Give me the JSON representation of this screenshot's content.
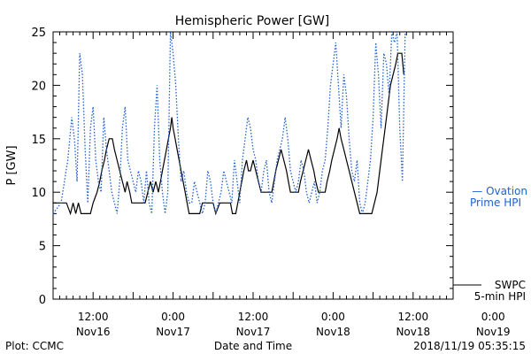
{
  "chart_data": {
    "type": "line",
    "title": "Hemispheric Power [GW]",
    "xlabel": "Date and Time",
    "ylabel": "P [GW]",
    "ylim": [
      0,
      25
    ],
    "xlim": [
      0,
      60
    ],
    "x_unit": "hours",
    "yticks": [
      0,
      5,
      10,
      15,
      20,
      25
    ],
    "xticks": [
      {
        "x": 6,
        "time": "12:00",
        "date": "Nov16"
      },
      {
        "x": 18,
        "time": "0:00",
        "date": "Nov17"
      },
      {
        "x": 30,
        "time": "12:00",
        "date": "Nov17"
      },
      {
        "x": 42,
        "time": "0:00",
        "date": "Nov18"
      },
      {
        "x": 54,
        "time": "12:00",
        "date": "Nov18"
      },
      {
        "x": 66,
        "time": "0:00",
        "date": "Nov19"
      }
    ],
    "footer_left": "Plot: CCMC",
    "footer_right": "2018/11/19 05:35:15",
    "legend": {
      "ovation": [
        "— Ovation",
        "Prime HPI"
      ],
      "swpc": [
        "SWPC",
        "5-min HPI"
      ]
    },
    "colors": {
      "swpc": "#000000",
      "ovation": "#1f5fd0"
    },
    "series": [
      {
        "name": "SWPC 5-min HPI",
        "style": "solid",
        "points": [
          [
            0,
            9
          ],
          [
            1,
            9
          ],
          [
            2,
            9
          ],
          [
            2.6,
            8
          ],
          [
            3.0,
            9
          ],
          [
            3.4,
            8
          ],
          [
            3.8,
            9
          ],
          [
            4.2,
            8
          ],
          [
            5.6,
            8
          ],
          [
            6.0,
            9
          ],
          [
            6.6,
            10
          ],
          [
            7.0,
            11
          ],
          [
            7.3,
            12
          ],
          [
            7.7,
            13
          ],
          [
            8.0,
            14
          ],
          [
            8.4,
            15
          ],
          [
            8.9,
            15
          ],
          [
            9.2,
            14
          ],
          [
            9.6,
            13
          ],
          [
            10.0,
            12
          ],
          [
            10.4,
            11
          ],
          [
            10.8,
            10
          ],
          [
            11.1,
            11
          ],
          [
            11.5,
            10
          ],
          [
            11.8,
            9
          ],
          [
            12.2,
            9
          ],
          [
            13.8,
            9
          ],
          [
            14.2,
            10
          ],
          [
            14.6,
            11
          ],
          [
            15.0,
            10
          ],
          [
            15.4,
            11
          ],
          [
            15.8,
            10
          ],
          [
            16.1,
            11
          ],
          [
            16.4,
            12
          ],
          [
            16.7,
            13
          ],
          [
            17.0,
            14
          ],
          [
            17.3,
            15
          ],
          [
            17.6,
            16
          ],
          [
            17.8,
            17
          ],
          [
            18.0,
            16
          ],
          [
            18.3,
            15
          ],
          [
            18.6,
            14
          ],
          [
            18.9,
            13
          ],
          [
            19.2,
            12
          ],
          [
            19.5,
            11
          ],
          [
            19.8,
            10
          ],
          [
            20.1,
            9
          ],
          [
            20.4,
            8
          ],
          [
            22.0,
            8
          ],
          [
            22.4,
            9
          ],
          [
            24.0,
            9
          ],
          [
            24.4,
            8
          ],
          [
            25.0,
            9
          ],
          [
            26.6,
            9
          ],
          [
            26.9,
            8
          ],
          [
            27.4,
            8
          ],
          [
            27.7,
            9
          ],
          [
            28.0,
            10
          ],
          [
            28.3,
            11
          ],
          [
            28.6,
            12
          ],
          [
            29.0,
            13
          ],
          [
            29.3,
            12
          ],
          [
            29.6,
            12
          ],
          [
            30.0,
            13
          ],
          [
            30.4,
            12
          ],
          [
            30.8,
            11
          ],
          [
            31.2,
            10
          ],
          [
            32.8,
            10
          ],
          [
            33.1,
            11
          ],
          [
            33.4,
            12
          ],
          [
            33.8,
            13
          ],
          [
            34.2,
            14
          ],
          [
            34.6,
            13
          ],
          [
            35.0,
            12
          ],
          [
            35.3,
            11
          ],
          [
            35.6,
            10
          ],
          [
            36.8,
            10
          ],
          [
            37.1,
            11
          ],
          [
            37.5,
            12
          ],
          [
            37.9,
            13
          ],
          [
            38.3,
            14
          ],
          [
            38.7,
            13
          ],
          [
            39.1,
            12
          ],
          [
            39.4,
            11
          ],
          [
            39.8,
            10
          ],
          [
            40.8,
            10
          ],
          [
            41.1,
            11
          ],
          [
            41.5,
            12
          ],
          [
            41.8,
            13
          ],
          [
            42.2,
            14
          ],
          [
            42.6,
            15
          ],
          [
            42.9,
            16
          ],
          [
            43.2,
            15
          ],
          [
            43.6,
            14
          ],
          [
            44.0,
            13
          ],
          [
            44.4,
            12
          ],
          [
            44.8,
            11
          ],
          [
            45.2,
            10
          ],
          [
            45.6,
            9
          ],
          [
            46.0,
            8
          ],
          [
            47.8,
            8
          ],
          [
            48.2,
            9
          ],
          [
            48.6,
            10
          ],
          [
            49.0,
            12
          ],
          [
            49.4,
            14
          ],
          [
            49.8,
            16
          ],
          [
            50.2,
            18
          ],
          [
            50.6,
            20
          ],
          [
            51.0,
            21
          ],
          [
            51.4,
            22
          ],
          [
            51.7,
            23
          ],
          [
            52.3,
            23
          ],
          [
            52.6,
            21
          ]
        ]
      },
      {
        "name": "Ovation Prime HPI",
        "style": "dotted",
        "points": [
          [
            0,
            8
          ],
          [
            1.2,
            9
          ],
          [
            2.2,
            13
          ],
          [
            2.8,
            17
          ],
          [
            3.2,
            15
          ],
          [
            3.6,
            11
          ],
          [
            4.0,
            23
          ],
          [
            4.4,
            21
          ],
          [
            4.8,
            14
          ],
          [
            5.2,
            9
          ],
          [
            5.6,
            16
          ],
          [
            6.0,
            18
          ],
          [
            6.4,
            13
          ],
          [
            6.8,
            11
          ],
          [
            7.2,
            10
          ],
          [
            7.6,
            17
          ],
          [
            8.0,
            14
          ],
          [
            8.4,
            12
          ],
          [
            8.8,
            10
          ],
          [
            9.2,
            9
          ],
          [
            9.6,
            8
          ],
          [
            10.0,
            11
          ],
          [
            10.4,
            16
          ],
          [
            10.8,
            18
          ],
          [
            11.2,
            13
          ],
          [
            11.6,
            12
          ],
          [
            12.0,
            11
          ],
          [
            12.4,
            10
          ],
          [
            12.8,
            12
          ],
          [
            13.2,
            11
          ],
          [
            13.6,
            9
          ],
          [
            14.0,
            12
          ],
          [
            14.4,
            9
          ],
          [
            14.8,
            8
          ],
          [
            15.2,
            16
          ],
          [
            15.6,
            20
          ],
          [
            16.0,
            13
          ],
          [
            16.4,
            10
          ],
          [
            16.8,
            8
          ],
          [
            17.2,
            10
          ],
          [
            17.6,
            25
          ],
          [
            18.0,
            23
          ],
          [
            18.4,
            20
          ],
          [
            18.8,
            15
          ],
          [
            19.2,
            11
          ],
          [
            19.6,
            12
          ],
          [
            20.0,
            10
          ],
          [
            20.4,
            9
          ],
          [
            20.8,
            9
          ],
          [
            21.2,
            11
          ],
          [
            21.6,
            10
          ],
          [
            22.0,
            9
          ],
          [
            22.4,
            8
          ],
          [
            22.8,
            9
          ],
          [
            23.2,
            12
          ],
          [
            23.6,
            11
          ],
          [
            24.0,
            9
          ],
          [
            24.4,
            8
          ],
          [
            24.8,
            9
          ],
          [
            25.2,
            10
          ],
          [
            25.6,
            12
          ],
          [
            26.0,
            11
          ],
          [
            26.4,
            10
          ],
          [
            26.8,
            9
          ],
          [
            27.2,
            13
          ],
          [
            27.6,
            11
          ],
          [
            28.0,
            9
          ],
          [
            28.4,
            13
          ],
          [
            28.8,
            15
          ],
          [
            29.2,
            17
          ],
          [
            29.6,
            16
          ],
          [
            30.0,
            14
          ],
          [
            30.4,
            13
          ],
          [
            30.8,
            11
          ],
          [
            31.2,
            10
          ],
          [
            31.6,
            12
          ],
          [
            32.0,
            13
          ],
          [
            32.4,
            10
          ],
          [
            32.8,
            9
          ],
          [
            33.2,
            11
          ],
          [
            33.6,
            13
          ],
          [
            34.0,
            14
          ],
          [
            34.4,
            15
          ],
          [
            34.8,
            17
          ],
          [
            35.2,
            15
          ],
          [
            35.6,
            12
          ],
          [
            36.0,
            11
          ],
          [
            36.4,
            10
          ],
          [
            36.8,
            11
          ],
          [
            37.2,
            13
          ],
          [
            37.6,
            12
          ],
          [
            38.0,
            10
          ],
          [
            38.4,
            9
          ],
          [
            38.8,
            10
          ],
          [
            39.2,
            11
          ],
          [
            39.6,
            9
          ],
          [
            40.0,
            10
          ],
          [
            40.4,
            12
          ],
          [
            40.8,
            13
          ],
          [
            41.2,
            16
          ],
          [
            41.6,
            20
          ],
          [
            42.0,
            22
          ],
          [
            42.4,
            24
          ],
          [
            42.8,
            20
          ],
          [
            43.2,
            16
          ],
          [
            43.6,
            21
          ],
          [
            44.0,
            19
          ],
          [
            44.4,
            15
          ],
          [
            44.8,
            12
          ],
          [
            45.2,
            11
          ],
          [
            45.6,
            13
          ],
          [
            46.0,
            9
          ],
          [
            46.4,
            8
          ],
          [
            46.8,
            9
          ],
          [
            47.2,
            11
          ],
          [
            47.6,
            13
          ],
          [
            48.0,
            17
          ],
          [
            48.4,
            24
          ],
          [
            48.8,
            21
          ],
          [
            49.2,
            16
          ],
          [
            49.6,
            23
          ],
          [
            50.0,
            22
          ],
          [
            50.4,
            19
          ],
          [
            50.8,
            25
          ],
          [
            51.2,
            24
          ],
          [
            51.6,
            25
          ],
          [
            52.0,
            16
          ],
          [
            52.4,
            11
          ],
          [
            52.8,
            25
          ]
        ]
      }
    ]
  }
}
